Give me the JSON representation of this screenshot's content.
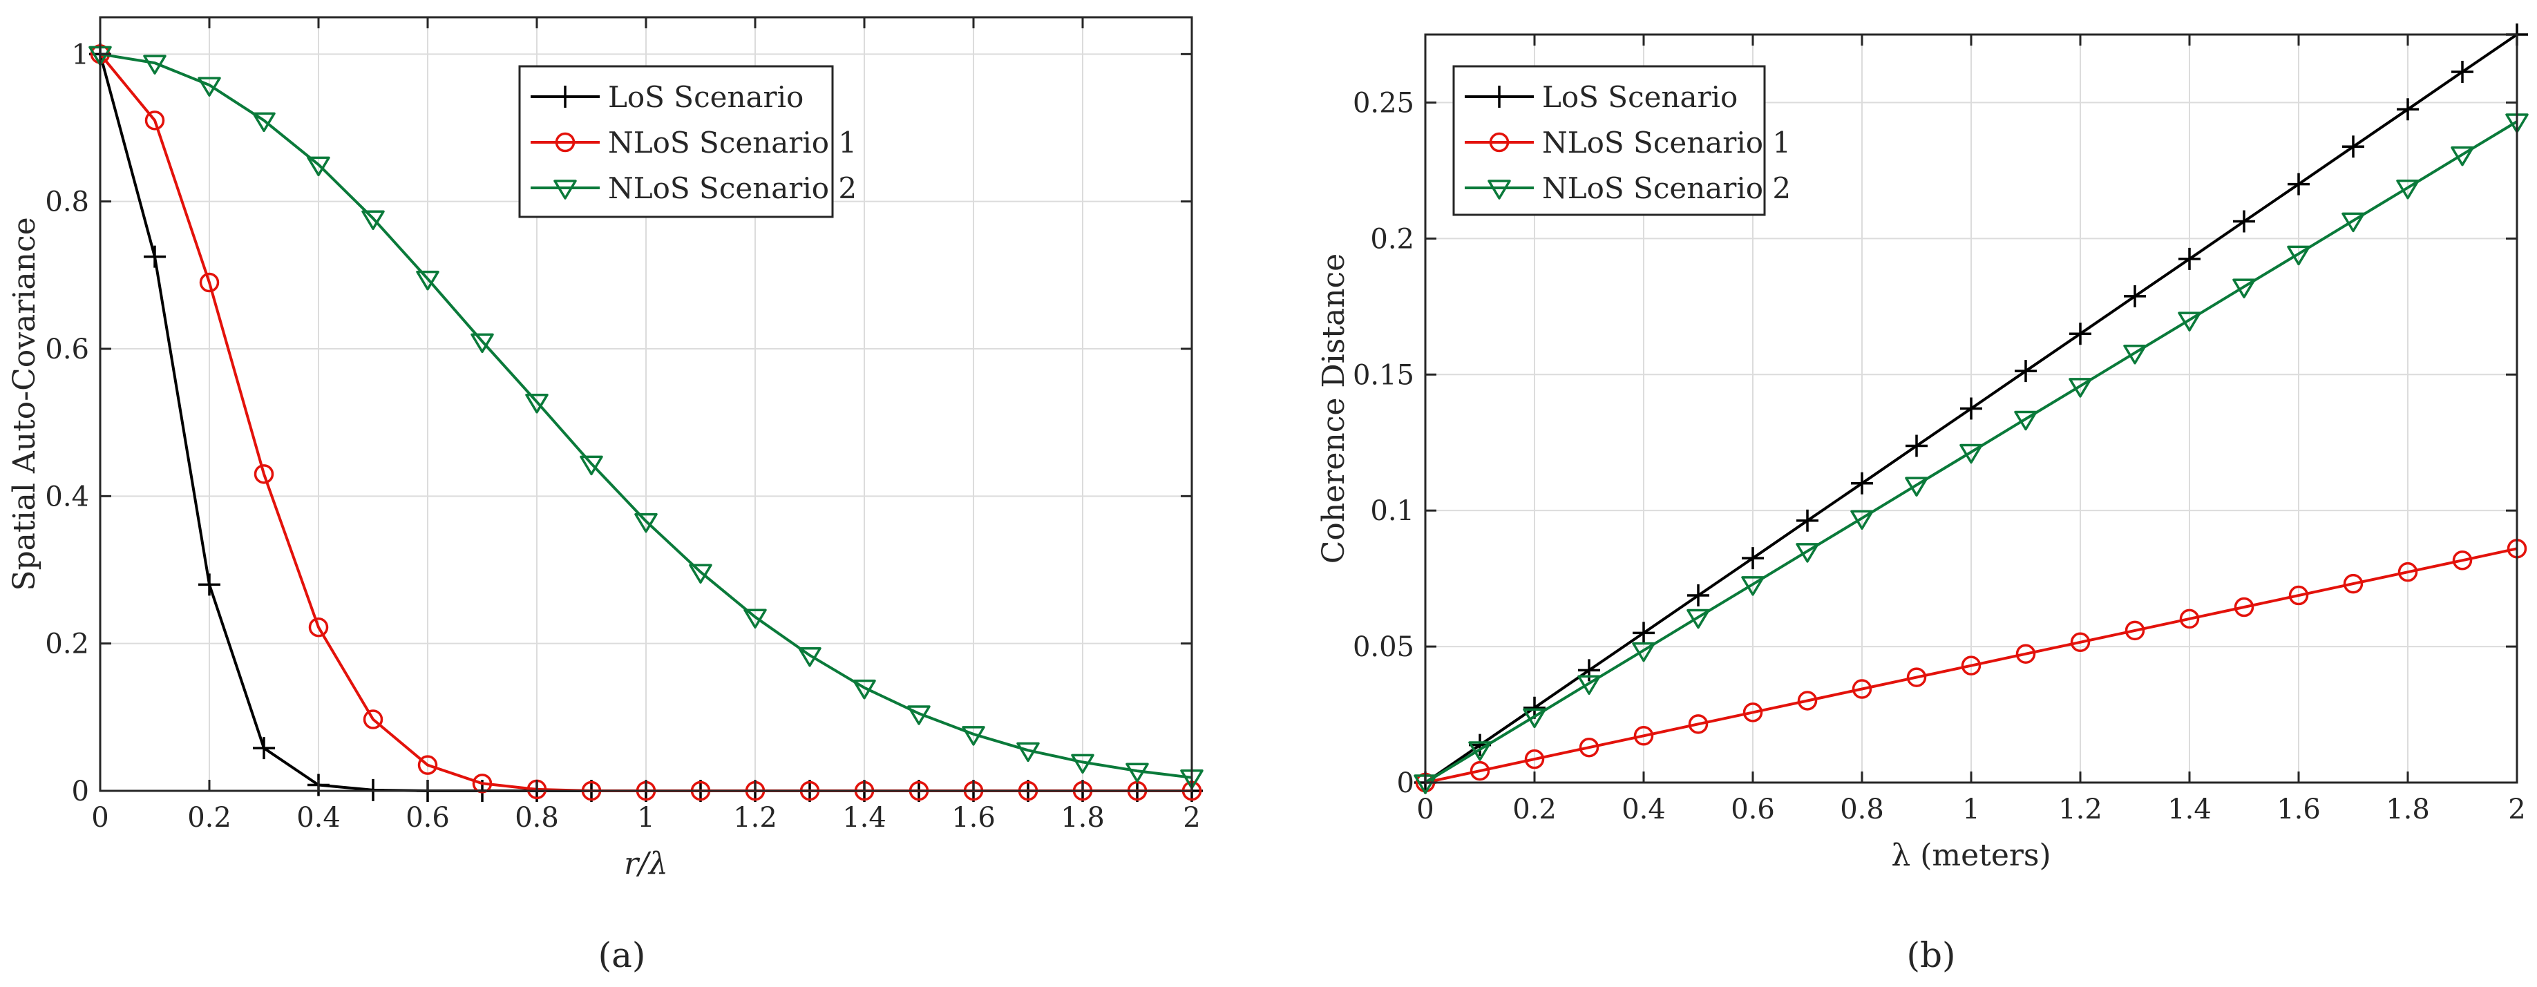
{
  "chart_data": [
    {
      "type": "line",
      "caption": "(a)",
      "xlabel": "r/λ",
      "ylabel": "Spatial Auto-Covariance",
      "xlim": [
        0,
        2
      ],
      "ylim": [
        0,
        1.05
      ],
      "xticks": [
        0,
        0.2,
        0.4,
        0.6,
        0.8,
        1,
        1.2,
        1.4,
        1.6,
        1.8,
        2
      ],
      "xtick_labels": [
        "0",
        "0.2",
        "0.4",
        "0.6",
        "0.8",
        "1",
        "1.2",
        "1.4",
        "1.6",
        "1.8",
        "2"
      ],
      "yticks": [
        0,
        0.2,
        0.4,
        0.6,
        0.8,
        1
      ],
      "ytick_labels": [
        "0",
        "0.2",
        "0.4",
        "0.6",
        "0.8",
        "1"
      ],
      "grid": true,
      "legend_position": "top-right",
      "x": [
        0,
        0.1,
        0.2,
        0.3,
        0.4,
        0.5,
        0.6,
        0.7,
        0.8,
        0.9,
        1.0,
        1.1,
        1.2,
        1.3,
        1.4,
        1.5,
        1.6,
        1.7,
        1.8,
        1.9,
        2.0
      ],
      "series": [
        {
          "name": "LoS Scenario",
          "color": "#000000",
          "marker": "plus",
          "values": [
            1.0,
            0.725,
            0.28,
            0.058,
            0.008,
            0.001,
            0,
            0,
            0,
            0,
            0,
            0,
            0,
            0,
            0,
            0,
            0,
            0,
            0,
            0,
            0
          ]
        },
        {
          "name": "NLoS Scenario 1",
          "color": "#e3120b",
          "marker": "circle",
          "values": [
            1.0,
            0.91,
            0.69,
            0.43,
            0.222,
            0.097,
            0.035,
            0.01,
            0.002,
            0,
            0,
            0,
            0,
            0,
            0,
            0,
            0,
            0,
            0,
            0,
            0
          ]
        },
        {
          "name": "NLoS Scenario 2",
          "color": "#0a7a3a",
          "marker": "triangle-down",
          "values": [
            1.0,
            0.988,
            0.958,
            0.91,
            0.85,
            0.777,
            0.695,
            0.61,
            0.528,
            0.444,
            0.366,
            0.297,
            0.236,
            0.184,
            0.14,
            0.105,
            0.077,
            0.055,
            0.039,
            0.027,
            0.018
          ]
        }
      ]
    },
    {
      "type": "line",
      "caption": "(b)",
      "xlabel": "λ (meters)",
      "ylabel": "Coherence Distance",
      "xlim": [
        0,
        2
      ],
      "ylim": [
        0,
        0.275
      ],
      "xticks": [
        0,
        0.2,
        0.4,
        0.6,
        0.8,
        1,
        1.2,
        1.4,
        1.6,
        1.8,
        2
      ],
      "xtick_labels": [
        "0",
        "0.2",
        "0.4",
        "0.6",
        "0.8",
        "1",
        "1.2",
        "1.4",
        "1.6",
        "1.8",
        "2"
      ],
      "yticks": [
        0,
        0.05,
        0.1,
        0.15,
        0.2,
        0.25
      ],
      "ytick_labels": [
        "0",
        "0.05",
        "0.1",
        "0.15",
        "0.2",
        "0.25"
      ],
      "grid": true,
      "legend_position": "top-left",
      "x": [
        0,
        0.1,
        0.2,
        0.3,
        0.4,
        0.5,
        0.6,
        0.7,
        0.8,
        0.9,
        1.0,
        1.1,
        1.2,
        1.3,
        1.4,
        1.5,
        1.6,
        1.7,
        1.8,
        1.9,
        2.0
      ],
      "series": [
        {
          "name": "LoS Scenario",
          "color": "#000000",
          "marker": "plus",
          "values": [
            0,
            0.0138,
            0.0275,
            0.0413,
            0.055,
            0.0688,
            0.0825,
            0.0963,
            0.11,
            0.1238,
            0.1375,
            0.1513,
            0.165,
            0.1788,
            0.1925,
            0.2063,
            0.22,
            0.2338,
            0.2475,
            0.2613,
            0.275
          ]
        },
        {
          "name": "NLoS Scenario 1",
          "color": "#e3120b",
          "marker": "circle",
          "values": [
            0,
            0.0043,
            0.0086,
            0.0129,
            0.0172,
            0.0215,
            0.0258,
            0.0301,
            0.0344,
            0.0387,
            0.043,
            0.0473,
            0.0516,
            0.0559,
            0.0602,
            0.0645,
            0.0688,
            0.0731,
            0.0774,
            0.0817,
            0.086
          ]
        },
        {
          "name": "NLoS Scenario 2",
          "color": "#0a7a3a",
          "marker": "triangle-down",
          "values": [
            0,
            0.0122,
            0.0243,
            0.0365,
            0.0486,
            0.0608,
            0.0729,
            0.0851,
            0.0972,
            0.1094,
            0.1215,
            0.1337,
            0.1458,
            0.158,
            0.1701,
            0.1823,
            0.1944,
            0.2066,
            0.2187,
            0.2309,
            0.243
          ]
        }
      ]
    }
  ]
}
